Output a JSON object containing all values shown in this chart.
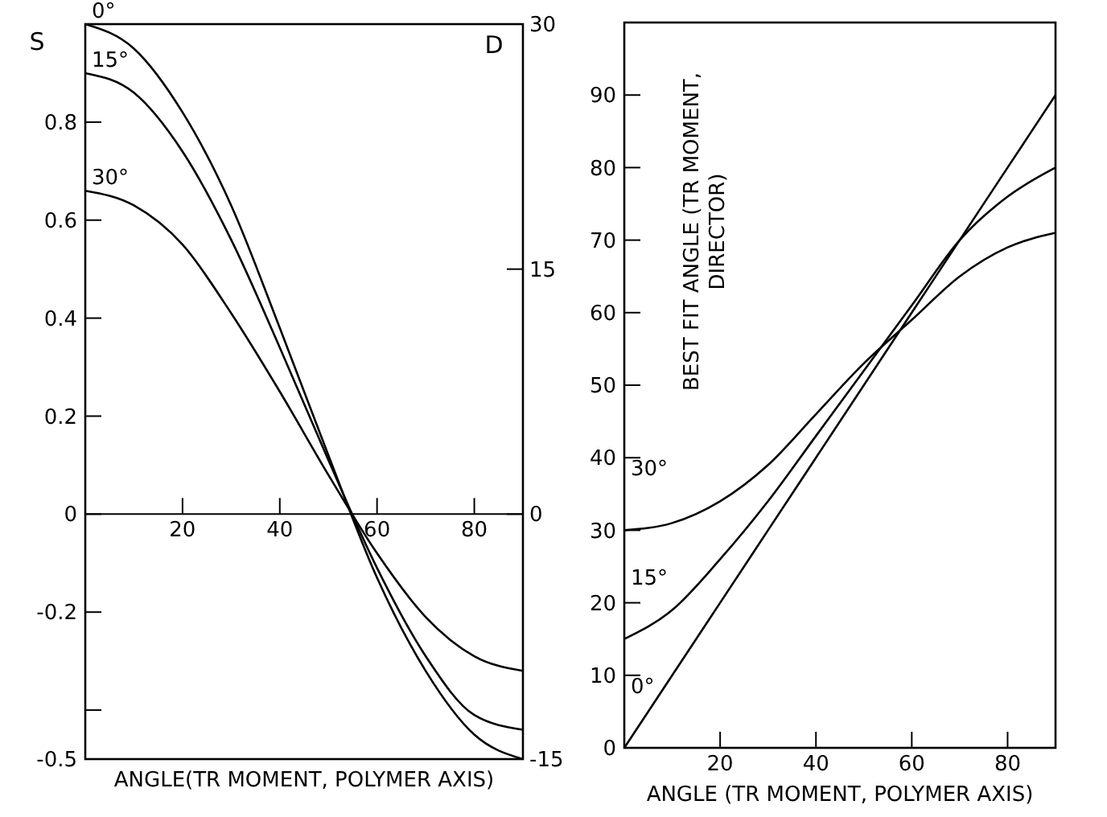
{
  "chart_data": [
    {
      "type": "line",
      "ylabel": "S",
      "y2label": "D",
      "xlabel": "ANGLE(TR MOMENT, POLYMER AXIS)",
      "xlim": [
        0,
        90
      ],
      "xticks": [
        20,
        40,
        60,
        80
      ],
      "ylim": [
        -0.5,
        1.0
      ],
      "yticks": [
        -0.5,
        {
          "value": -0.4,
          "label": null
        },
        -0.2,
        0,
        0.2,
        0.4,
        0.6,
        0.8
      ],
      "y2lim": [
        -15,
        30
      ],
      "y2ticks": [
        -15,
        0,
        15,
        30
      ],
      "x": [
        0,
        10,
        20,
        30,
        40,
        50,
        60,
        70,
        80,
        90
      ],
      "series": [
        {
          "name": "0°",
          "color": "#000000",
          "values": [
            1.0,
            0.95,
            0.82,
            0.63,
            0.38,
            0.12,
            -0.13,
            -0.32,
            -0.45,
            -0.5
          ]
        },
        {
          "name": "15°",
          "color": "#000000",
          "values": [
            0.9,
            0.86,
            0.74,
            0.56,
            0.34,
            0.11,
            -0.11,
            -0.29,
            -0.41,
            -0.44
          ]
        },
        {
          "name": "30°",
          "color": "#000000",
          "values": [
            0.66,
            0.63,
            0.55,
            0.41,
            0.25,
            0.08,
            -0.08,
            -0.21,
            -0.29,
            -0.32
          ]
        }
      ]
    },
    {
      "type": "line",
      "ylabel": "BEST FIT ANGLE (TR MOMENT, DIRECTOR)",
      "xlabel": "ANGLE (TR MOMENT, POLYMER AXIS)",
      "xlim": [
        0,
        90
      ],
      "xticks": [
        20,
        40,
        60,
        80
      ],
      "ylim": [
        0,
        100
      ],
      "yticks": [
        0,
        10,
        20,
        30,
        40,
        50,
        60,
        70,
        80,
        90
      ],
      "x": [
        0,
        10,
        20,
        30,
        40,
        50,
        60,
        70,
        80,
        90
      ],
      "series": [
        {
          "name": "0°",
          "color": "#000000",
          "values": [
            0,
            10,
            20,
            30,
            40,
            50,
            60,
            70,
            80,
            90
          ]
        },
        {
          "name": "15°",
          "color": "#000000",
          "values": [
            15,
            19,
            26,
            34,
            43,
            52,
            61,
            70,
            76,
            80
          ]
        },
        {
          "name": "30°",
          "color": "#000000",
          "values": [
            30,
            31,
            34,
            39,
            46,
            53,
            59,
            65,
            69,
            71
          ]
        }
      ]
    }
  ]
}
